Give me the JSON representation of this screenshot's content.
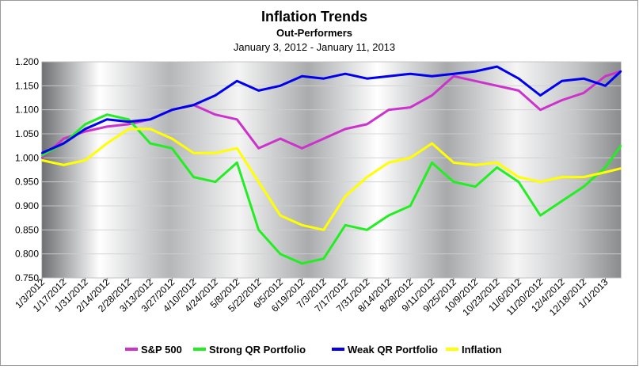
{
  "colors": {
    "sp500": "#cc33cc",
    "strong": "#22ee22",
    "weak": "#0000ee",
    "inflation": "#ffff00",
    "plot_background": "metallic gray gradient",
    "grid": "#d0d0d0"
  },
  "chart_data": {
    "type": "line",
    "title": "Inflation Trends",
    "subtitle": "Out-Performers",
    "date_range": "January 3, 2012 - January 11, 2013",
    "xlabel": "",
    "ylabel": "",
    "ylim": [
      0.75,
      1.2
    ],
    "yticks": [
      "0.750",
      "0.800",
      "0.850",
      "0.900",
      "0.950",
      "1.000",
      "1.050",
      "1.100",
      "1.150",
      "1.200"
    ],
    "xticks": [
      "1/3/2012",
      "1/17/2012",
      "1/31/2012",
      "2/14/2012",
      "2/28/2012",
      "3/13/2012",
      "3/27/2012",
      "4/10/2012",
      "4/24/2012",
      "5/8/2012",
      "5/22/2012",
      "6/5/2012",
      "6/19/2012",
      "7/3/2012",
      "7/17/2012",
      "7/31/2012",
      "8/14/2012",
      "8/28/2012",
      "9/11/2012",
      "9/25/2012",
      "10/9/2012",
      "10/23/2012",
      "11/6/2012",
      "11/20/2012",
      "12/4/2012",
      "12/18/2012",
      "1/1/2013"
    ],
    "x": [
      "2012-01-03",
      "2012-01-17",
      "2012-01-31",
      "2012-02-14",
      "2012-02-28",
      "2012-03-13",
      "2012-03-27",
      "2012-04-10",
      "2012-04-24",
      "2012-05-08",
      "2012-05-22",
      "2012-06-05",
      "2012-06-19",
      "2012-07-03",
      "2012-07-17",
      "2012-07-31",
      "2012-08-14",
      "2012-08-28",
      "2012-09-11",
      "2012-09-25",
      "2012-10-09",
      "2012-10-23",
      "2012-11-06",
      "2012-11-20",
      "2012-12-04",
      "2012-12-18",
      "2013-01-01",
      "2013-01-11"
    ],
    "grid": true,
    "legend_position": "bottom",
    "series": [
      {
        "name": "S&P 500",
        "color_key": "sp500",
        "values": [
          1.0,
          1.04,
          1.055,
          1.065,
          1.07,
          1.08,
          1.1,
          1.11,
          1.09,
          1.08,
          1.02,
          1.04,
          1.02,
          1.04,
          1.06,
          1.07,
          1.1,
          1.105,
          1.13,
          1.17,
          1.16,
          1.15,
          1.14,
          1.1,
          1.12,
          1.135,
          1.17,
          1.18
        ]
      },
      {
        "name": "Strong QR Portfolio",
        "color_key": "strong",
        "values": [
          1.005,
          1.03,
          1.07,
          1.09,
          1.08,
          1.03,
          1.02,
          0.96,
          0.95,
          0.99,
          0.85,
          0.8,
          0.78,
          0.79,
          0.86,
          0.85,
          0.88,
          0.9,
          0.99,
          0.95,
          0.94,
          0.98,
          0.95,
          0.88,
          0.91,
          0.94,
          0.98,
          1.025
        ]
      },
      {
        "name": "Weak QR Portfolio",
        "color_key": "weak",
        "values": [
          1.01,
          1.03,
          1.06,
          1.08,
          1.075,
          1.08,
          1.1,
          1.11,
          1.13,
          1.16,
          1.14,
          1.15,
          1.17,
          1.165,
          1.175,
          1.165,
          1.17,
          1.175,
          1.17,
          1.175,
          1.18,
          1.19,
          1.165,
          1.13,
          1.16,
          1.165,
          1.15,
          1.18
        ]
      },
      {
        "name": "Inflation",
        "color_key": "inflation",
        "values": [
          0.995,
          0.985,
          0.995,
          1.03,
          1.06,
          1.06,
          1.04,
          1.01,
          1.01,
          1.02,
          0.95,
          0.88,
          0.86,
          0.85,
          0.92,
          0.96,
          0.99,
          1.0,
          1.03,
          0.99,
          0.985,
          0.99,
          0.96,
          0.95,
          0.96,
          0.96,
          0.97,
          0.978
        ]
      }
    ]
  }
}
